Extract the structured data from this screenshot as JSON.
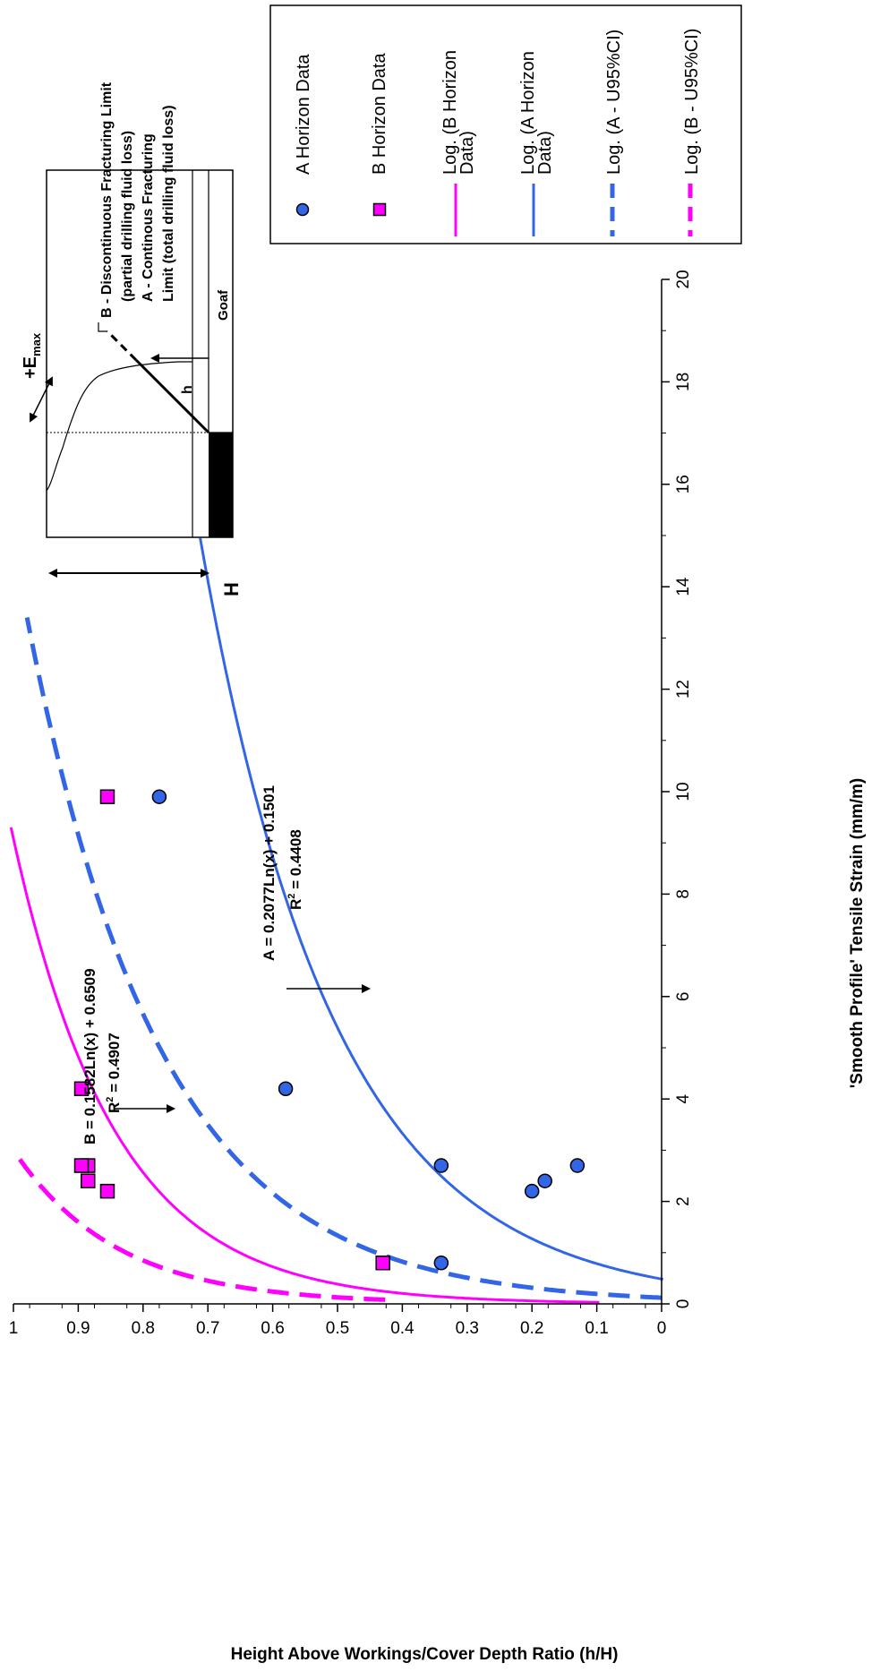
{
  "chart_data": {
    "type": "scatter",
    "orientation": "rotated 90 degrees clockwise",
    "xlabel": "'Smooth Profile' Tensile Strain (mm/m)",
    "ylabel": "Height Above Workings/Cover Depth Ratio (h/H)",
    "xlim": [
      0,
      20
    ],
    "ylim": [
      0,
      1
    ],
    "x_ticks": [
      "0",
      "2",
      "4",
      "6",
      "8",
      "10",
      "12",
      "14",
      "16",
      "18",
      "20"
    ],
    "y_ticks": [
      "0",
      "0.1",
      "0.2",
      "0.3",
      "0.4",
      "0.5",
      "0.6",
      "0.7",
      "0.8",
      "0.9",
      "1"
    ],
    "grid": false,
    "legend_position": "right",
    "series": [
      {
        "name": "A Horizon Data",
        "kind": "points",
        "marker": "circle",
        "color": "#3366E6",
        "points": [
          [
            0.8,
            0.34
          ],
          [
            2.2,
            0.2
          ],
          [
            2.4,
            0.18
          ],
          [
            2.7,
            0.13
          ],
          [
            2.7,
            0.34
          ],
          [
            4.2,
            0.58
          ],
          [
            9.9,
            0.775
          ]
        ]
      },
      {
        "name": "B Horizon Data",
        "kind": "points",
        "marker": "square",
        "color": "#FF00FF",
        "points": [
          [
            0.8,
            0.43
          ],
          [
            2.2,
            0.855
          ],
          [
            2.4,
            0.885
          ],
          [
            2.7,
            0.885
          ],
          [
            2.7,
            0.895
          ],
          [
            4.2,
            0.895
          ],
          [
            9.9,
            0.855
          ]
        ]
      },
      {
        "name": "Log. (B Horizon Data)",
        "kind": "curve",
        "style": "solid",
        "color": "#FF00FF",
        "a": 0.1582,
        "b": 0.6509,
        "x_range": [
          0.03,
          9.3
        ]
      },
      {
        "name": "Log. (A Horizon Data)",
        "kind": "curve",
        "style": "solid",
        "color": "#3366E6",
        "a": 0.2077,
        "b": 0.1501,
        "x_range": [
          0.48,
          14.95
        ]
      },
      {
        "name": "Log. (A - U95%CI)",
        "kind": "curve",
        "style": "dashed",
        "color": "#3366E6",
        "a": 0.2077,
        "b": 0.44,
        "x_range": [
          0.12,
          13.4
        ]
      },
      {
        "name": "Log. (B - U95%CI)",
        "kind": "curve",
        "style": "dashed",
        "color": "#FF00FF",
        "a": 0.1582,
        "b": 0.826,
        "x_range": [
          0.08,
          2.95
        ]
      }
    ],
    "annotations": {
      "b_equation": "B = 0.1582Ln(x) + 0.6509",
      "b_r2_prefix": "R",
      "b_r2_sup": "2",
      "b_r2_value": " = 0.4907",
      "a_equation": "A = 0.2077Ln(x) + 0.1501",
      "a_r2_prefix": "R",
      "a_r2_sup": "2",
      "a_r2_value": " = 0.4408"
    }
  },
  "inset": {
    "big_h_label": "H",
    "emax_prefix": "+E",
    "emax_sub": "max",
    "small_h_label": "h",
    "goaf_label": "Goaf",
    "b_limit_line1": "B - Discontinuous Fracturing Limit",
    "b_limit_line2": "(partial drilling fluid loss)",
    "a_limit_line1": "A - Continous Fracturing",
    "a_limit_line2": "Limit (total drilling fluid loss)"
  },
  "legend": {
    "items": [
      {
        "label_lines": [
          "A Horizon Data"
        ]
      },
      {
        "label_lines": [
          "B Horizon Data"
        ]
      },
      {
        "label_lines": [
          "Log. (B Horizon",
          "Data)"
        ]
      },
      {
        "label_lines": [
          "Log. (A Horizon",
          "Data)"
        ]
      },
      {
        "label_lines": [
          "Log. (A - U95%CI)"
        ]
      },
      {
        "label_lines": [
          "Log. (B - U95%CI)"
        ]
      }
    ]
  }
}
